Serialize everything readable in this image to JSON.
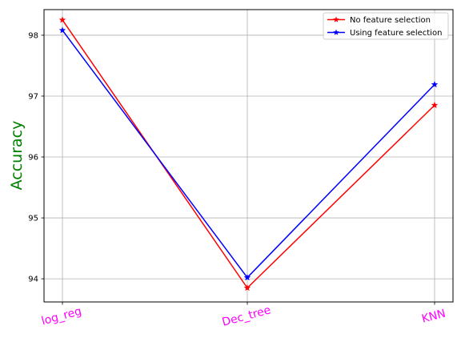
{
  "chart_data": {
    "type": "line",
    "title": "",
    "xlabel": "",
    "ylabel": "Accuracy",
    "ylabel_color": "#008000",
    "xtick_color": "#ff00ff",
    "categories": [
      "log_reg",
      "Dec_tree",
      "KNN"
    ],
    "yticks": [
      94,
      95,
      96,
      97,
      98
    ],
    "ylim": [
      93.62,
      98.42
    ],
    "grid": true,
    "legend_position": "top-right",
    "series": [
      {
        "name": "No feature selection",
        "color": "#ff0000",
        "marker": "star",
        "values": [
          98.25,
          93.85,
          96.85
        ]
      },
      {
        "name": "Using feature selection",
        "color": "#0000ff",
        "marker": "star",
        "values": [
          98.08,
          94.02,
          97.19
        ]
      }
    ]
  }
}
